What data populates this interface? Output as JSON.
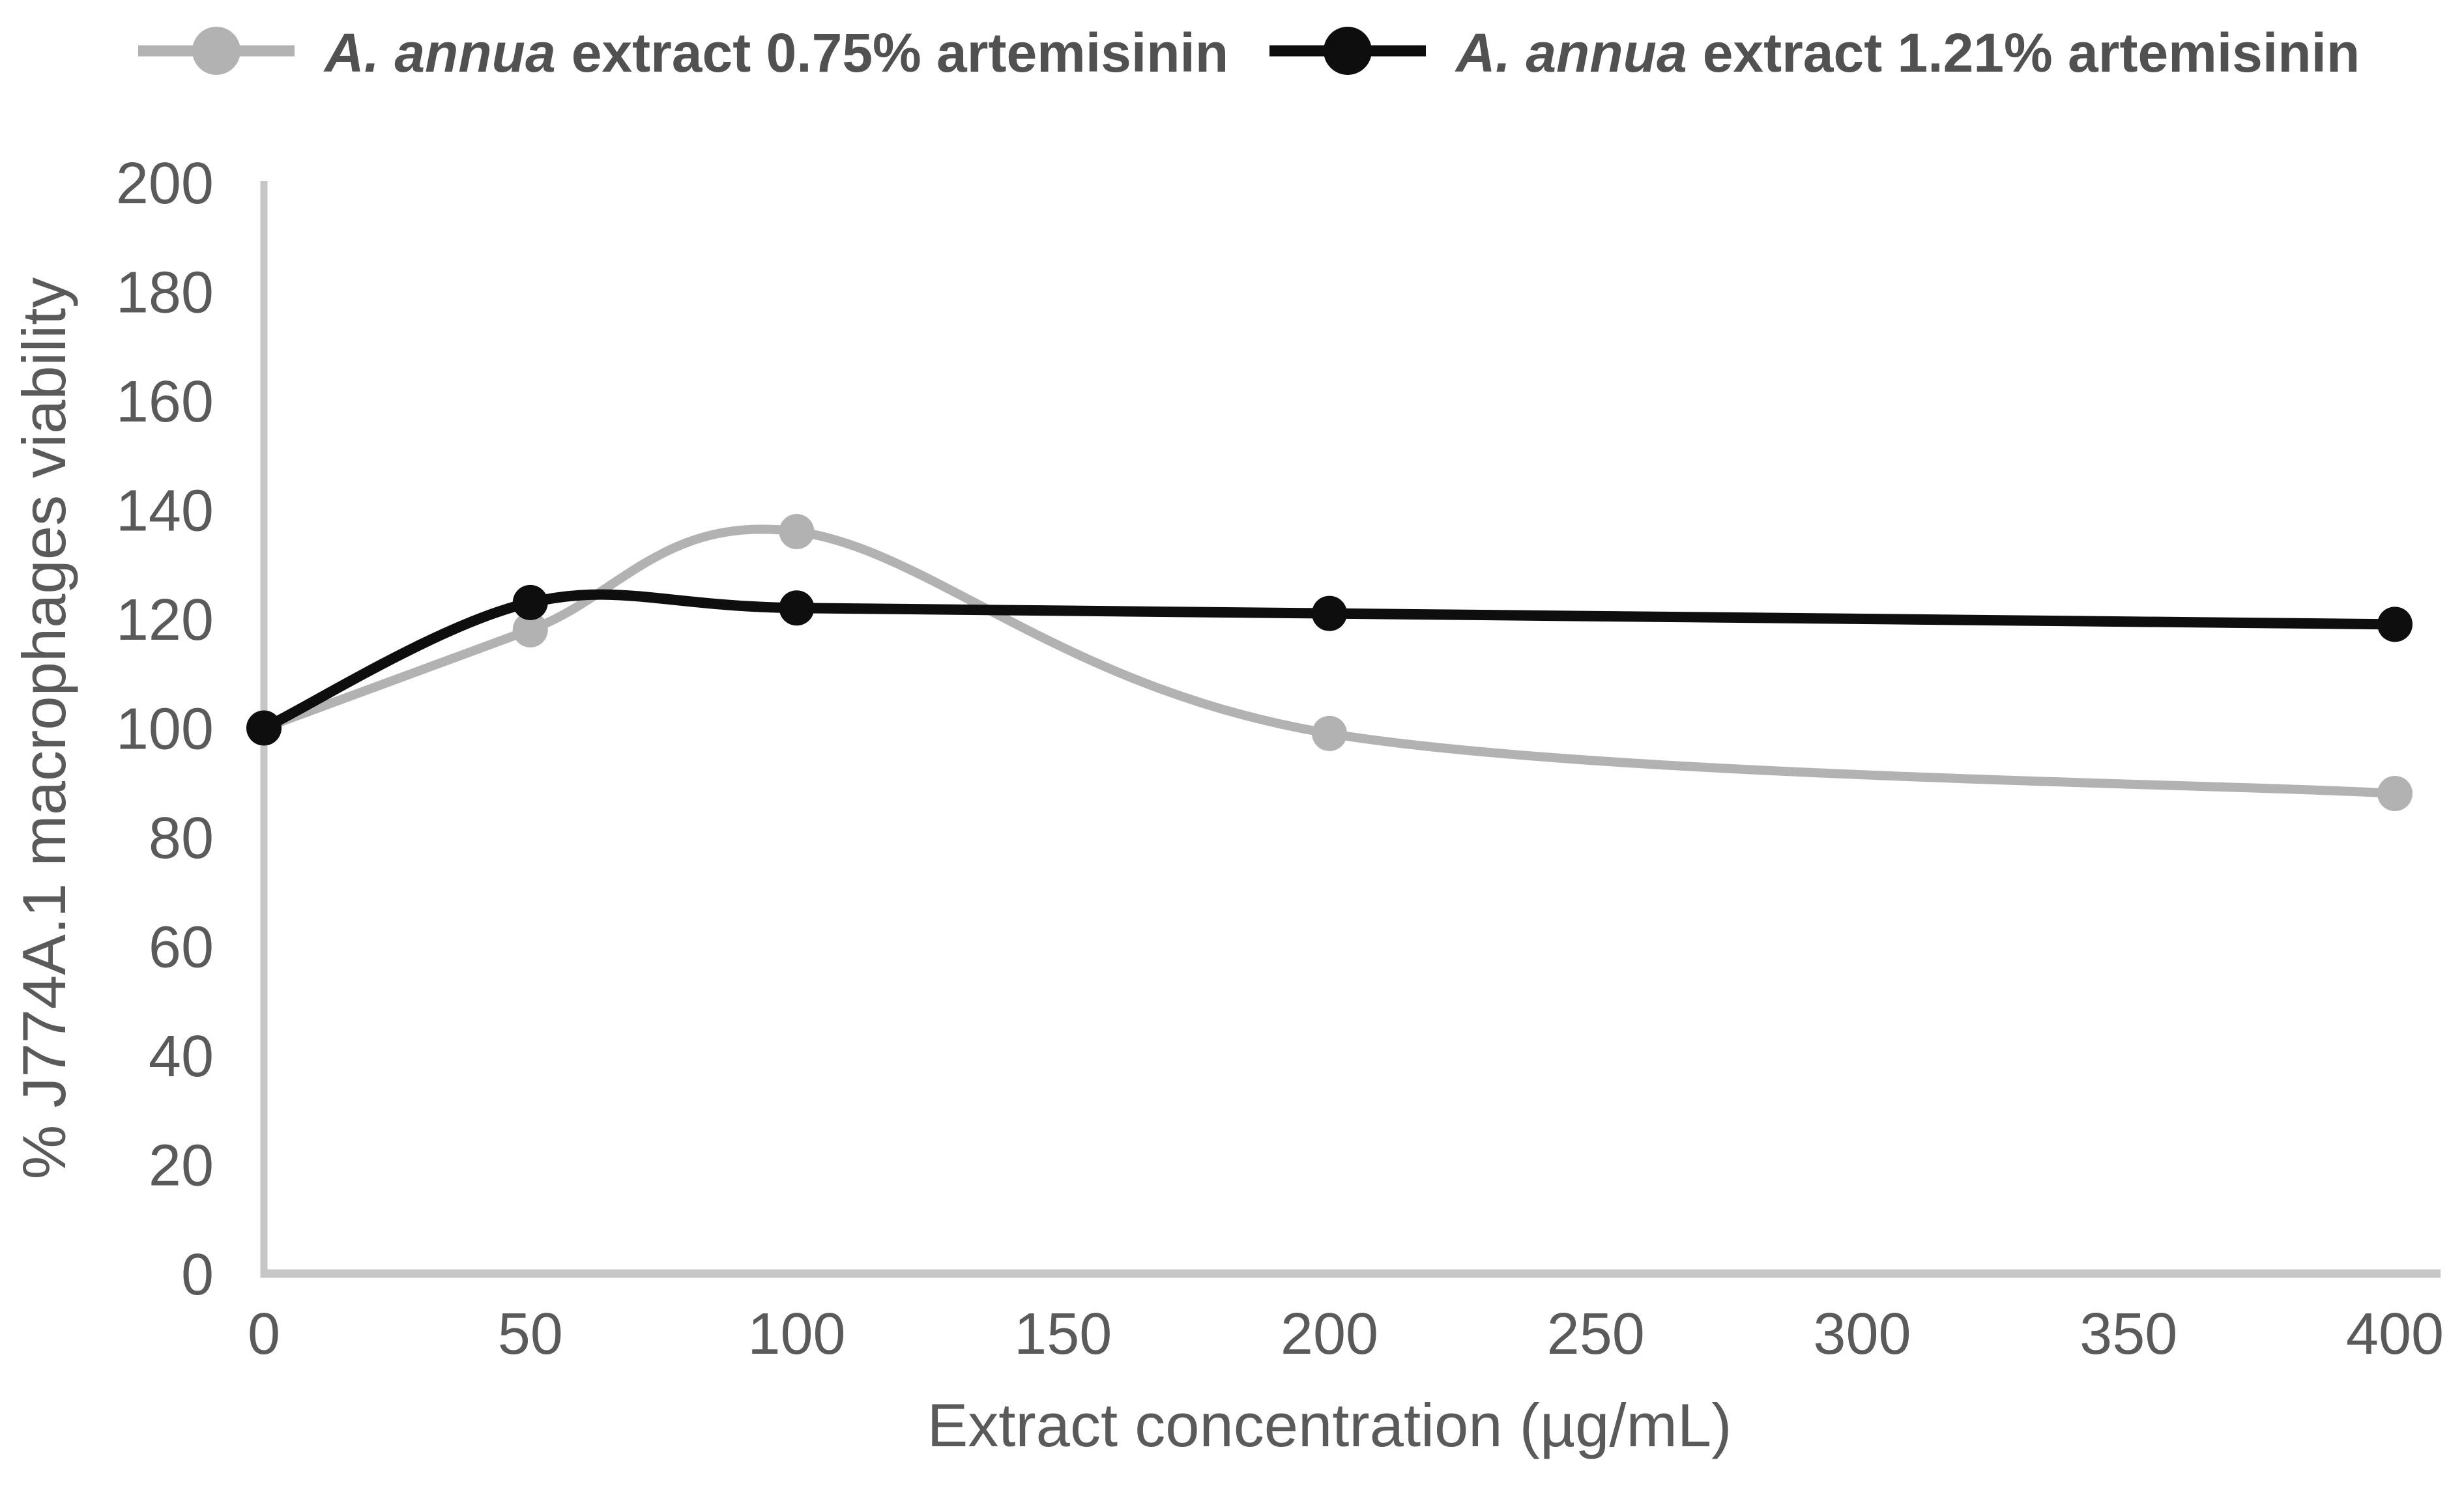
{
  "chart_data": {
    "type": "line",
    "title": "",
    "x": [
      0,
      50,
      100,
      200,
      400
    ],
    "series": [
      {
        "name": "A. annua extract 0.75% artemisinin",
        "name_italic": "A. annua",
        "name_rest": "extract 0.75% artemisinin",
        "values": [
          100,
          118,
          136,
          99,
          88
        ],
        "color": "#b2b2b2",
        "marker": "circle"
      },
      {
        "name": "A. annua extract 1.21% artemisinin",
        "name_italic": "A. annua",
        "name_rest": "extract 1.21% artemisinin",
        "values": [
          100,
          123,
          122,
          121,
          119
        ],
        "color": "#0e0e0e",
        "marker": "circle"
      }
    ],
    "x_axis": {
      "title": "Extract concentration (µg/mL)",
      "min": 0,
      "max": 400,
      "tick_step": 50,
      "tick_labels": [
        "0",
        "50",
        "100",
        "150",
        "200",
        "250",
        "300",
        "350",
        "400"
      ]
    },
    "y_axis": {
      "title": "% J774A.1 macrophages viability",
      "min": 0,
      "max": 200,
      "tick_step": 20,
      "tick_labels": [
        "200",
        "180",
        "160",
        "140",
        "120",
        "100",
        "80",
        "60",
        "40",
        "20",
        "0"
      ]
    },
    "grid": false,
    "legend_position": "top",
    "line_smoothing": "spline",
    "axis_color": "#c6c6c6"
  }
}
